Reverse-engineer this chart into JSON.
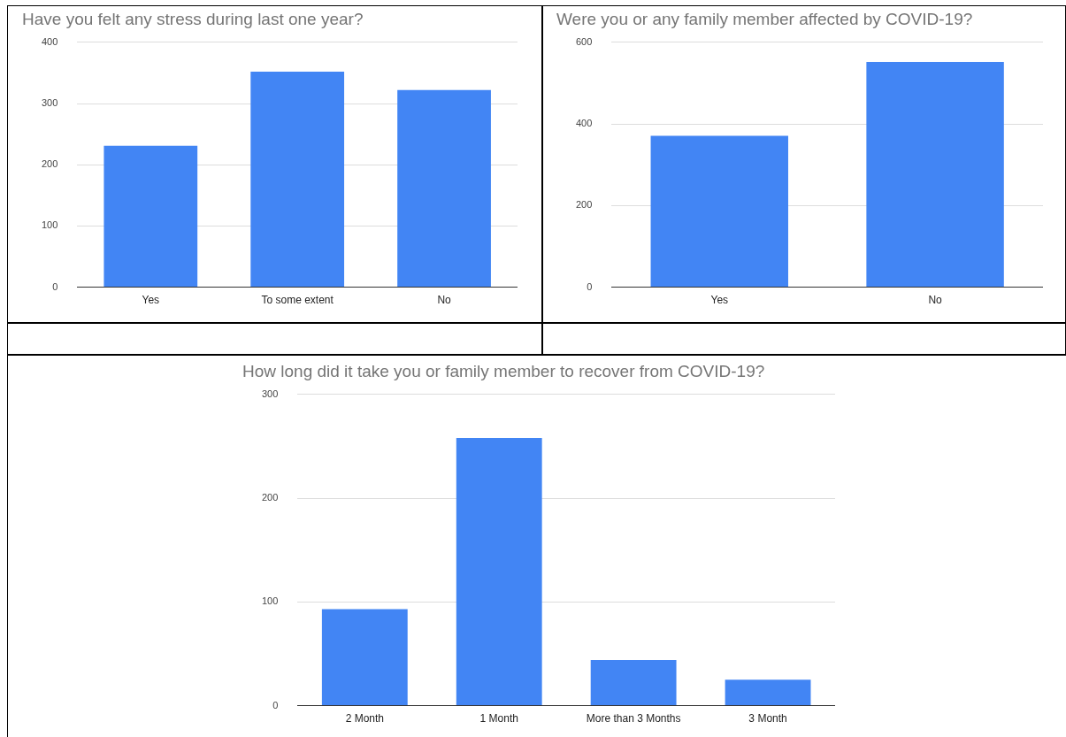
{
  "chart_data": [
    {
      "type": "bar",
      "title": "Have you felt any stress during last one year?",
      "categories": [
        "Yes",
        "To some extent",
        "No"
      ],
      "values": [
        231,
        352,
        322
      ],
      "color": "#4285f4",
      "ylim": [
        0,
        400
      ],
      "yticks": [
        0,
        100,
        200,
        300,
        400
      ],
      "grid": "y"
    },
    {
      "type": "bar",
      "title": "Were you or any family member affected by COVID-19?",
      "categories": [
        "Yes",
        "No"
      ],
      "values": [
        371,
        552
      ],
      "color": "#4285f4",
      "ylim": [
        0,
        600
      ],
      "yticks": [
        0,
        200,
        400,
        600
      ],
      "grid": "y"
    },
    {
      "type": "bar",
      "title": "How long did it take you or family member to recover from COVID-19?",
      "categories": [
        "2 Month",
        "1 Month",
        "More than 3 Months",
        "3 Month"
      ],
      "values": [
        93,
        258,
        44,
        25
      ],
      "color": "#4285f4",
      "ylim": [
        0,
        300
      ],
      "yticks": [
        0,
        100,
        200,
        300
      ],
      "grid": "y"
    }
  ]
}
